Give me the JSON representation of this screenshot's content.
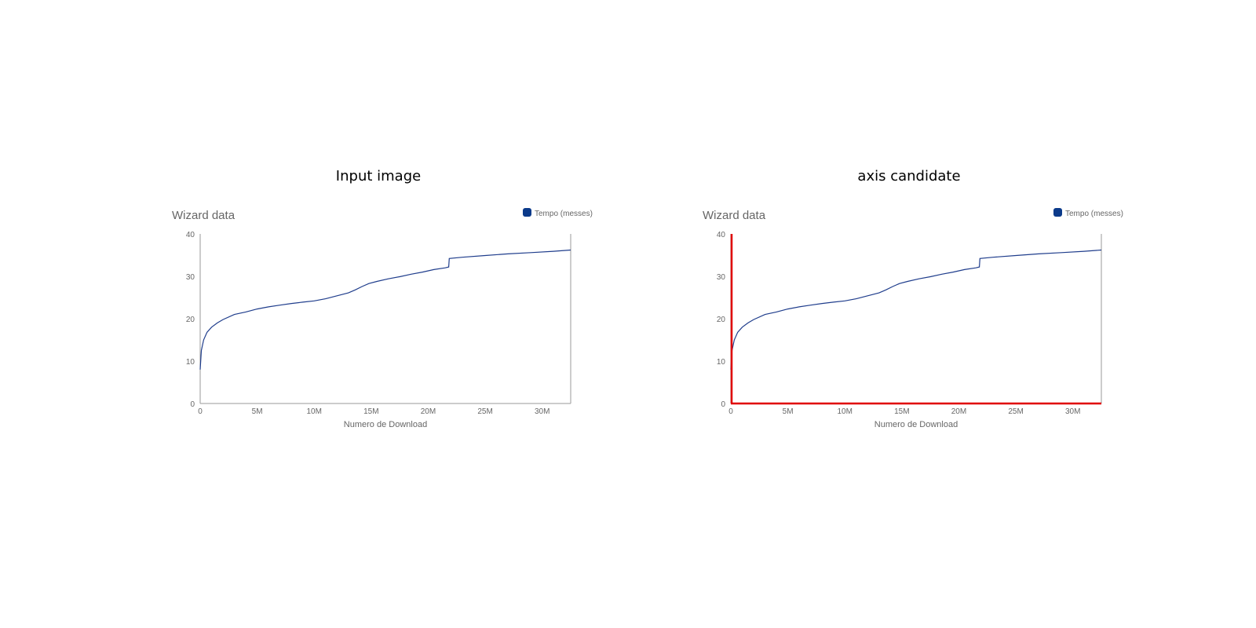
{
  "panels": [
    {
      "title": "Input image"
    },
    {
      "title": "axis candidate"
    }
  ],
  "colors": {
    "series": "#1f3d8c",
    "legend_marker": "#0b3a8a",
    "axis_gray": "#9a9a9a",
    "text_gray": "#666666",
    "highlight": "#e00000"
  },
  "chart_data": [
    {
      "type": "line",
      "title": "Wizard data",
      "xlabel": "Numero de Download",
      "ylabel": "",
      "xlim": [
        0,
        32500000
      ],
      "ylim": [
        0,
        40
      ],
      "x_ticks": [
        0,
        5000000,
        10000000,
        15000000,
        20000000,
        25000000,
        30000000
      ],
      "x_tick_labels": [
        "0",
        "5M",
        "10M",
        "15M",
        "20M",
        "25M",
        "30M"
      ],
      "y_ticks": [
        0,
        10,
        20,
        30,
        40
      ],
      "y_tick_labels": [
        "0",
        "10",
        "20",
        "30",
        "40"
      ],
      "legend": {
        "position": "top-right",
        "entries": [
          "Tempo (messes)"
        ]
      },
      "grid": false,
      "series": [
        {
          "name": "Tempo (messes)",
          "x": [
            0,
            100000,
            300000,
            600000,
            1000000,
            1500000,
            2000000,
            3000000,
            4000000,
            5000000,
            6000000,
            7000000,
            8000000,
            9000000,
            10000000,
            11000000,
            12000000,
            13000000,
            13600000,
            14200000,
            14800000,
            15500000,
            16500000,
            17500000,
            18500000,
            19500000,
            20500000,
            21500000,
            21800000,
            21850000,
            23000000,
            25000000,
            27000000,
            29000000,
            31000000,
            32500000
          ],
          "y": [
            8,
            12.5,
            15,
            16.8,
            18,
            19,
            19.8,
            21,
            21.6,
            22.3,
            22.8,
            23.2,
            23.6,
            23.9,
            24.2,
            24.7,
            25.4,
            26.1,
            26.8,
            27.6,
            28.3,
            28.8,
            29.4,
            29.9,
            30.5,
            31.0,
            31.6,
            32.0,
            32.2,
            34.2,
            34.5,
            34.9,
            35.3,
            35.6,
            35.9,
            36.2
          ]
        }
      ]
    },
    {
      "type": "line",
      "title": "Wizard data",
      "xlabel": "Numero de Download",
      "ylabel": "",
      "xlim": [
        0,
        32500000
      ],
      "ylim": [
        0,
        40
      ],
      "x_ticks": [
        0,
        5000000,
        10000000,
        15000000,
        20000000,
        25000000,
        30000000
      ],
      "x_tick_labels": [
        "0",
        "5M",
        "10M",
        "15M",
        "20M",
        "25M",
        "30M"
      ],
      "y_ticks": [
        0,
        10,
        20,
        30,
        40
      ],
      "y_tick_labels": [
        "0",
        "10",
        "20",
        "30",
        "40"
      ],
      "legend": {
        "position": "top-right",
        "entries": [
          "Tempo (messes)"
        ]
      },
      "grid": false,
      "highlighted_axes": true,
      "series": [
        {
          "name": "Tempo (messes)",
          "x": [
            0,
            100000,
            300000,
            600000,
            1000000,
            1500000,
            2000000,
            3000000,
            4000000,
            5000000,
            6000000,
            7000000,
            8000000,
            9000000,
            10000000,
            11000000,
            12000000,
            13000000,
            13600000,
            14200000,
            14800000,
            15500000,
            16500000,
            17500000,
            18500000,
            19500000,
            20500000,
            21500000,
            21800000,
            21850000,
            23000000,
            25000000,
            27000000,
            29000000,
            31000000,
            32500000
          ],
          "y": [
            8,
            12.5,
            15,
            16.8,
            18,
            19,
            19.8,
            21,
            21.6,
            22.3,
            22.8,
            23.2,
            23.6,
            23.9,
            24.2,
            24.7,
            25.4,
            26.1,
            26.8,
            27.6,
            28.3,
            28.8,
            29.4,
            29.9,
            30.5,
            31.0,
            31.6,
            32.0,
            32.2,
            34.2,
            34.5,
            34.9,
            35.3,
            35.6,
            35.9,
            36.2
          ]
        }
      ]
    }
  ]
}
